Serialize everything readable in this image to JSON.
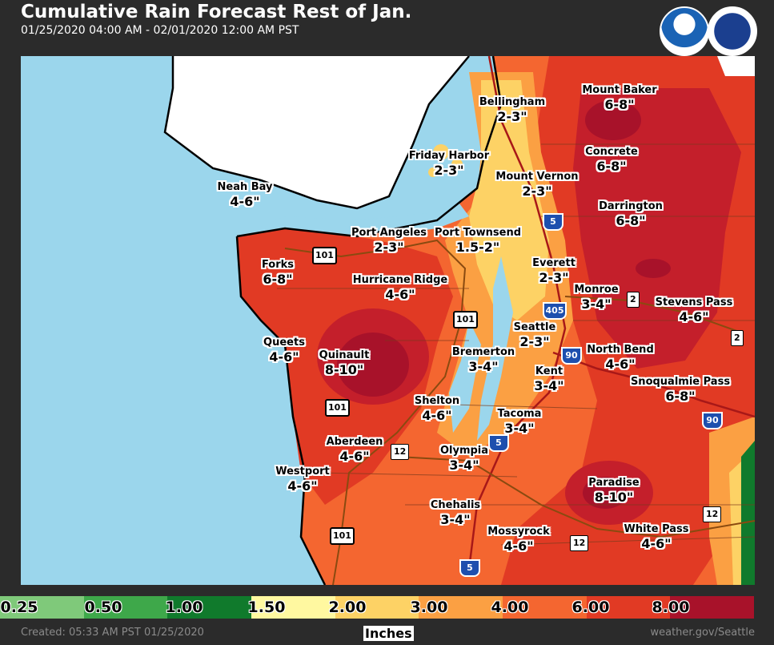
{
  "header": {
    "title": "Cumulative Rain Forecast Rest of Jan.",
    "subtitle": "01/25/2020 04:00 AM - 02/01/2020 12:00 AM PST",
    "logo_left": "NOAA",
    "logo_right": "NATIONAL WEATHER SERVICE"
  },
  "places": [
    {
      "name": "Bellingham",
      "value": "2-3\""
    },
    {
      "name": "Mount Baker",
      "value": "6-8\""
    },
    {
      "name": "Friday Harbor",
      "value": "2-3\""
    },
    {
      "name": "Concrete",
      "value": "6-8\""
    },
    {
      "name": "Mount Vernon",
      "value": "2-3\""
    },
    {
      "name": "Neah Bay",
      "value": "4-6\""
    },
    {
      "name": "Darrington",
      "value": "6-8\""
    },
    {
      "name": "Port Angeles",
      "value": "2-3\""
    },
    {
      "name": "Port Townsend",
      "value": "1.5-2\""
    },
    {
      "name": "Everett",
      "value": "2-3\""
    },
    {
      "name": "Forks",
      "value": "6-8\""
    },
    {
      "name": "Hurricane Ridge",
      "value": "4-6\""
    },
    {
      "name": "Monroe",
      "value": "3-4\""
    },
    {
      "name": "Stevens Pass",
      "value": "4-6\""
    },
    {
      "name": "Seattle",
      "value": "2-3\""
    },
    {
      "name": "Queets",
      "value": "4-6\""
    },
    {
      "name": "Quinault",
      "value": "8-10\""
    },
    {
      "name": "Bremerton",
      "value": "3-4\""
    },
    {
      "name": "North Bend",
      "value": "4-6\""
    },
    {
      "name": "Kent",
      "value": "3-4\""
    },
    {
      "name": "Snoqualmie Pass",
      "value": "6-8\""
    },
    {
      "name": "Shelton",
      "value": "4-6\""
    },
    {
      "name": "Tacoma",
      "value": "3-4\""
    },
    {
      "name": "Aberdeen",
      "value": "4-6\""
    },
    {
      "name": "Olympia",
      "value": "3-4\""
    },
    {
      "name": "Westport",
      "value": "4-6\""
    },
    {
      "name": "Paradise",
      "value": "8-10\""
    },
    {
      "name": "Chehalis",
      "value": "3-4\""
    },
    {
      "name": "Mossyrock",
      "value": "4-6\""
    },
    {
      "name": "White Pass",
      "value": "4-6\""
    }
  ],
  "highways": {
    "us101": "101",
    "i5": "5",
    "i405": "405",
    "i90": "90",
    "sr2": "2",
    "sr12": "12"
  },
  "legend": {
    "ticks": [
      "0.25",
      "0.50",
      "1.00",
      "1.50",
      "2.00",
      "3.00",
      "4.00",
      "6.00",
      "8.00"
    ],
    "colors": [
      "#7fc97a",
      "#3ea84a",
      "#107a2c",
      "#fff8a0",
      "#fdd265",
      "#fba043",
      "#f46630",
      "#e13a24",
      "#a8122a"
    ],
    "units": "Inches"
  },
  "footer": {
    "created": "Created: 05:33 AM PST 01/25/2020",
    "site": "weather.gov/Seattle"
  }
}
